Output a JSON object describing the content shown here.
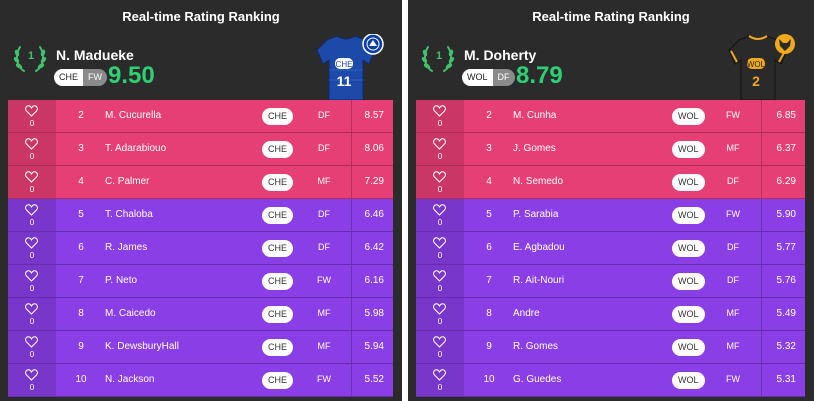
{
  "panels": [
    {
      "title": "Real-time Rating Ranking",
      "top": {
        "rank": "1",
        "name": "N. Madueke",
        "team": "CHE",
        "pos": "FW",
        "score": "9.50",
        "jersey_number": "11",
        "jersey_team": "CHE",
        "colors": {
          "shirt": "#1d4aa8",
          "accent": "#0b2a73"
        },
        "crest_icon": "chelsea-crest-icon"
      },
      "rows": [
        {
          "likes": "0",
          "rank": "2",
          "name": "M. Cucurella",
          "team": "CHE",
          "pos": "DF",
          "rating": "8.57",
          "tier": "pink"
        },
        {
          "likes": "0",
          "rank": "3",
          "name": "T. Adarabiouo",
          "team": "CHE",
          "pos": "DF",
          "rating": "8.06",
          "tier": "pink"
        },
        {
          "likes": "0",
          "rank": "4",
          "name": "C. Palmer",
          "team": "CHE",
          "pos": "MF",
          "rating": "7.29",
          "tier": "pink"
        },
        {
          "likes": "0",
          "rank": "5",
          "name": "T. Chaloba",
          "team": "CHE",
          "pos": "DF",
          "rating": "6.46",
          "tier": "purple"
        },
        {
          "likes": "0",
          "rank": "6",
          "name": "R. James",
          "team": "CHE",
          "pos": "DF",
          "rating": "6.42",
          "tier": "purple"
        },
        {
          "likes": "0",
          "rank": "7",
          "name": "P. Neto",
          "team": "CHE",
          "pos": "FW",
          "rating": "6.16",
          "tier": "purple"
        },
        {
          "likes": "0",
          "rank": "8",
          "name": "M. Caicedo",
          "team": "CHE",
          "pos": "MF",
          "rating": "5.98",
          "tier": "purple"
        },
        {
          "likes": "0",
          "rank": "9",
          "name": "K. DewsburyHall",
          "team": "CHE",
          "pos": "MF",
          "rating": "5.94",
          "tier": "purple"
        },
        {
          "likes": "0",
          "rank": "10",
          "name": "N. Jackson",
          "team": "CHE",
          "pos": "FW",
          "rating": "5.52",
          "tier": "purple"
        }
      ]
    },
    {
      "title": "Real-time Rating Ranking",
      "top": {
        "rank": "1",
        "name": "M. Doherty",
        "team": "WOL",
        "pos": "DF",
        "score": "8.79",
        "jersey_number": "2",
        "jersey_team": "WOL",
        "colors": {
          "shirt": "#2a2a2a",
          "accent": "#f2a81d"
        },
        "crest_icon": "wolves-crest-icon"
      },
      "rows": [
        {
          "likes": "0",
          "rank": "2",
          "name": "M. Cunha",
          "team": "WOL",
          "pos": "FW",
          "rating": "6.85",
          "tier": "pink"
        },
        {
          "likes": "0",
          "rank": "3",
          "name": "J. Gomes",
          "team": "WOL",
          "pos": "MF",
          "rating": "6.37",
          "tier": "pink"
        },
        {
          "likes": "0",
          "rank": "4",
          "name": "N. Semedo",
          "team": "WOL",
          "pos": "DF",
          "rating": "6.29",
          "tier": "pink"
        },
        {
          "likes": "0",
          "rank": "5",
          "name": "P. Sarabia",
          "team": "WOL",
          "pos": "FW",
          "rating": "5.90",
          "tier": "purple"
        },
        {
          "likes": "0",
          "rank": "6",
          "name": "E. Agbadou",
          "team": "WOL",
          "pos": "DF",
          "rating": "5.77",
          "tier": "purple"
        },
        {
          "likes": "0",
          "rank": "7",
          "name": "R. Ait-Nouri",
          "team": "WOL",
          "pos": "DF",
          "rating": "5.76",
          "tier": "purple"
        },
        {
          "likes": "0",
          "rank": "8",
          "name": "Andre",
          "team": "WOL",
          "pos": "MF",
          "rating": "5.49",
          "tier": "purple"
        },
        {
          "likes": "0",
          "rank": "9",
          "name": "R. Gomes",
          "team": "WOL",
          "pos": "MF",
          "rating": "5.32",
          "tier": "purple"
        },
        {
          "likes": "0",
          "rank": "10",
          "name": "G. Guedes",
          "team": "WOL",
          "pos": "FW",
          "rating": "5.31",
          "tier": "purple"
        }
      ]
    }
  ],
  "colors": {
    "pink": "#e63f75",
    "purple": "#8a3ee6",
    "score_green": "#2fcf74",
    "panel_bg": "#2b2b2b"
  }
}
